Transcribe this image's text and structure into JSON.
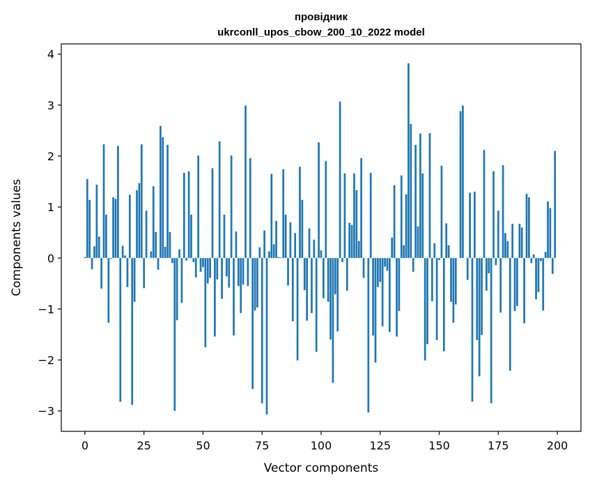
{
  "chart_data": {
    "type": "bar",
    "title_line1": "провідник",
    "title_line2": "ukrconll_upos_cbow_200_10_2022 model",
    "xlabel": "Vector components",
    "ylabel": "Components values",
    "xlim": [
      -10,
      210
    ],
    "ylim": [
      -3.4,
      4.2
    ],
    "xticks": [
      0,
      25,
      50,
      75,
      100,
      125,
      150,
      175,
      200
    ],
    "yticks": [
      -3,
      -2,
      -1,
      0,
      1,
      2,
      3,
      4
    ],
    "bar_color": "#1f77b4",
    "grid": false,
    "values": [
      0.02,
      1.55,
      1.14,
      -0.22,
      0.23,
      1.44,
      0.42,
      -0.6,
      2.23,
      0.85,
      -1.27,
      -0.02,
      1.19,
      1.16,
      2.2,
      -2.82,
      0.24,
      0.05,
      -0.57,
      1.24,
      -2.88,
      -0.86,
      1.33,
      1.47,
      2.23,
      -0.59,
      0.93,
      0.0,
      0.13,
      1.41,
      0.51,
      -0.23,
      2.59,
      2.37,
      0.22,
      2.22,
      0.51,
      -0.1,
      -3.0,
      -1.22,
      0.17,
      -0.88,
      1.67,
      -0.05,
      1.7,
      0.85,
      -0.08,
      -0.38,
      2.01,
      -0.27,
      -0.18,
      -1.75,
      -0.5,
      -0.39,
      1.76,
      -1.54,
      -0.42,
      2.29,
      -0.8,
      0.85,
      -0.36,
      -0.58,
      2.01,
      -1.52,
      0.52,
      -0.55,
      -1.08,
      -0.52,
      2.99,
      -0.55,
      1.96,
      -2.57,
      -1.03,
      -0.97,
      0.21,
      -2.85,
      0.54,
      -3.07,
      0.13,
      1.65,
      0.27,
      0.73,
      0.02,
      0.01,
      1.74,
      0.85,
      -0.54,
      0.7,
      -1.24,
      0.49,
      -2.01,
      1.79,
      1.14,
      -0.63,
      -1.23,
      0.58,
      -1.08,
      0.36,
      -1.84,
      2.27,
      0.15,
      -0.79,
      1.9,
      -0.86,
      -1.6,
      -2.45,
      -0.71,
      -1.44,
      3.07,
      -0.08,
      1.66,
      -0.64,
      0.69,
      0.65,
      1.66,
      1.33,
      0.33,
      1.96,
      -0.39,
      0.0,
      -3.03,
      1.67,
      -1.52,
      -2.05,
      -0.57,
      -0.47,
      -1.34,
      -0.17,
      -0.25,
      -1.45,
      0.4,
      1.43,
      -1.54,
      -1.04,
      1.62,
      0.25,
      1.25,
      3.82,
      2.63,
      -0.27,
      2.22,
      0.62,
      2.44,
      1.66,
      -2.01,
      -1.69,
      2.45,
      -0.85,
      0.29,
      -1.61,
      -0.04,
      1.81,
      -1.83,
      0.68,
      0.25,
      -0.86,
      -1.27,
      -0.91,
      0.0,
      2.88,
      2.99,
      0.0,
      -0.43,
      1.28,
      -2.82,
      1.3,
      -1.61,
      -2.32,
      -1.51,
      2.12,
      -0.64,
      -0.3,
      -2.85,
      1.7,
      -0.14,
      0.93,
      -1.07,
      1.82,
      0.49,
      0.33,
      -2.21,
      0.67,
      -1.04,
      -0.94,
      0.67,
      0.6,
      -1.28,
      1.26,
      1.19,
      -0.1,
      0.07,
      -0.81,
      -0.67,
      -0.06,
      -1.03,
      0.12,
      1.11,
      0.98,
      -0.31,
      2.1
    ]
  }
}
